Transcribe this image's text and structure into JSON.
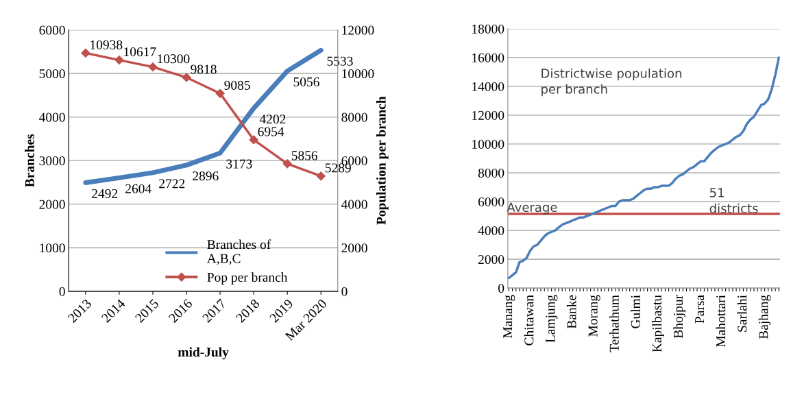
{
  "chart_data": [
    {
      "type": "line",
      "categories": [
        "2013",
        "2014",
        "2015",
        "2016",
        "2017",
        "2018",
        "2019",
        "Mar 2020"
      ],
      "xlabel": "mid-July",
      "ylabel": "Branches",
      "y2label": "Population per branch",
      "series": [
        {
          "name": "Branches of\nA,B,C",
          "color": "#4a7ebb",
          "marker": "none",
          "values": [
            2492,
            2604,
            2722,
            2896,
            3173,
            4202,
            5056,
            5533
          ]
        },
        {
          "name": "Pop per branch",
          "color": "#c0504d",
          "marker": "diamond",
          "axis": "y2",
          "values": [
            10938,
            10617,
            10300,
            9818,
            9085,
            6954,
            5856,
            5289
          ]
        }
      ],
      "ylim": [
        0,
        6000
      ],
      "yticks": [
        0,
        1000,
        2000,
        3000,
        4000,
        5000,
        6000
      ],
      "y2lim": [
        0,
        12000
      ],
      "y2ticks": [
        0,
        2000,
        4000,
        6000,
        8000,
        10000,
        12000
      ],
      "data_labels": true,
      "grid": "y",
      "legend": "bottom"
    },
    {
      "type": "line",
      "categories": [
        "Manang",
        null,
        null,
        null,
        null,
        null,
        "Chitawan",
        null,
        null,
        null,
        null,
        null,
        "Lamjung",
        null,
        null,
        null,
        null,
        null,
        "Banke",
        null,
        null,
        null,
        null,
        null,
        "Morang",
        null,
        null,
        null,
        null,
        null,
        "Terhathum",
        null,
        null,
        null,
        null,
        null,
        "Gulmi",
        null,
        null,
        null,
        null,
        null,
        "Kapilbastu",
        null,
        null,
        null,
        null,
        null,
        "Bhojpur",
        null,
        null,
        null,
        null,
        null,
        "Parsa",
        null,
        null,
        null,
        null,
        null,
        "Mahottari",
        null,
        null,
        null,
        null,
        null,
        "Sarlahi",
        null,
        null,
        null,
        null,
        null,
        "Bajhang",
        null,
        null,
        null,
        null
      ],
      "series": [
        {
          "color": "#4a7ebb",
          "marker": "none",
          "values": [
            700,
            900,
            1100,
            1800,
            1900,
            2100,
            2600,
            2900,
            3000,
            3300,
            3600,
            3800,
            3900,
            4000,
            4200,
            4400,
            4500,
            4600,
            4700,
            4800,
            4900,
            4900,
            5000,
            5100,
            5200,
            5300,
            5400,
            5500,
            5600,
            5700,
            5700,
            6000,
            6100,
            6100,
            6100,
            6200,
            6400,
            6600,
            6800,
            6900,
            6900,
            7000,
            7000,
            7100,
            7100,
            7100,
            7300,
            7600,
            7800,
            7900,
            8100,
            8300,
            8400,
            8600,
            8800,
            8800,
            9100,
            9400,
            9600,
            9800,
            9900,
            10000,
            10100,
            10300,
            10500,
            10600,
            10900,
            11400,
            11700,
            11900,
            12300,
            12700,
            12800,
            13100,
            13800,
            14800,
            16000
          ]
        }
      ],
      "ylim": [
        0,
        18000
      ],
      "yticks": [
        0,
        2000,
        4000,
        6000,
        8000,
        10000,
        12000,
        14000,
        16000,
        18000
      ],
      "ref_lines": [
        {
          "axis": "y",
          "value": 5150,
          "label": "Average",
          "color": "#c0504d"
        }
      ],
      "annotations": [
        "Districtwise population\nper branch",
        "51\ndistricts"
      ],
      "grid": "y",
      "legend": false
    }
  ]
}
